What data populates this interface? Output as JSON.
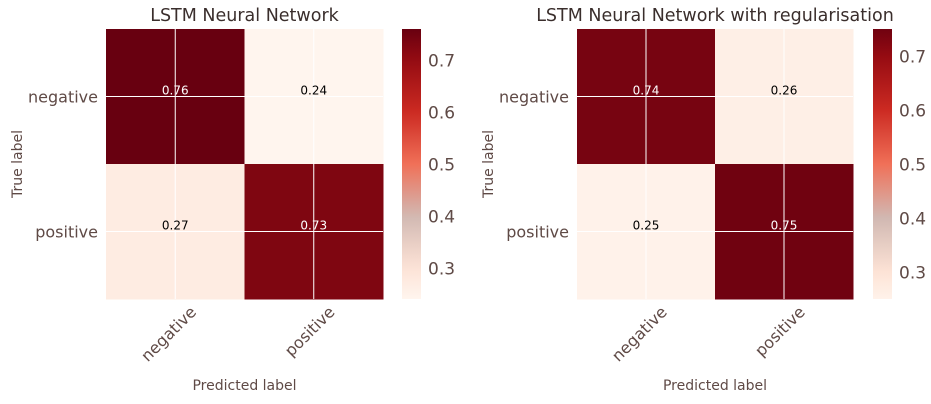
{
  "colors": {
    "text": "#5f4a46",
    "cell_text_dark": "#000000",
    "cell_text_light": "#ffffff",
    "grid": "#ffffff",
    "background": "#ffffff"
  },
  "colormap": {
    "name": "Reds",
    "stops": [
      {
        "v": 0.24,
        "color": "#fff5ee"
      },
      {
        "v": 0.3,
        "color": "#fde3d6"
      },
      {
        "v": 0.4,
        "color": "#d1b8b2"
      },
      {
        "v": 0.5,
        "color": "#f07058"
      },
      {
        "v": 0.6,
        "color": "#cc2a22"
      },
      {
        "v": 0.7,
        "color": "#950b12"
      },
      {
        "v": 0.76,
        "color": "#680010"
      }
    ]
  },
  "chart_data": [
    {
      "type": "heatmap",
      "title": "LSTM Neural Network",
      "xlabel": "Predicted label",
      "ylabel": "True label",
      "x_categories": [
        "negative",
        "positive"
      ],
      "y_categories": [
        "negative",
        "positive"
      ],
      "matrix": [
        [
          0.76,
          0.24
        ],
        [
          0.27,
          0.73
        ]
      ],
      "matrix_labels": [
        [
          "0.76",
          "0.24"
        ],
        [
          "0.27",
          "0.73"
        ]
      ],
      "color_range": [
        0.24,
        0.76
      ],
      "colorbar_ticks": [
        0.3,
        0.4,
        0.5,
        0.6,
        0.7
      ],
      "colorbar_tick_labels": [
        "0.3",
        "0.4",
        "0.5",
        "0.6",
        "0.7"
      ],
      "grid": true
    },
    {
      "type": "heatmap",
      "title": "LSTM Neural Network with regularisation",
      "xlabel": "Predicted label",
      "ylabel": "True label",
      "x_categories": [
        "negative",
        "positive"
      ],
      "y_categories": [
        "negative",
        "positive"
      ],
      "matrix": [
        [
          0.74,
          0.26
        ],
        [
          0.25,
          0.75
        ]
      ],
      "matrix_labels": [
        [
          "0.74",
          "0.26"
        ],
        [
          "0.25",
          "0.75"
        ]
      ],
      "color_range": [
        0.25,
        0.75
      ],
      "colorbar_ticks": [
        0.3,
        0.4,
        0.5,
        0.6,
        0.7
      ],
      "colorbar_tick_labels": [
        "0.3",
        "0.4",
        "0.5",
        "0.6",
        "0.7"
      ],
      "grid": true
    }
  ]
}
